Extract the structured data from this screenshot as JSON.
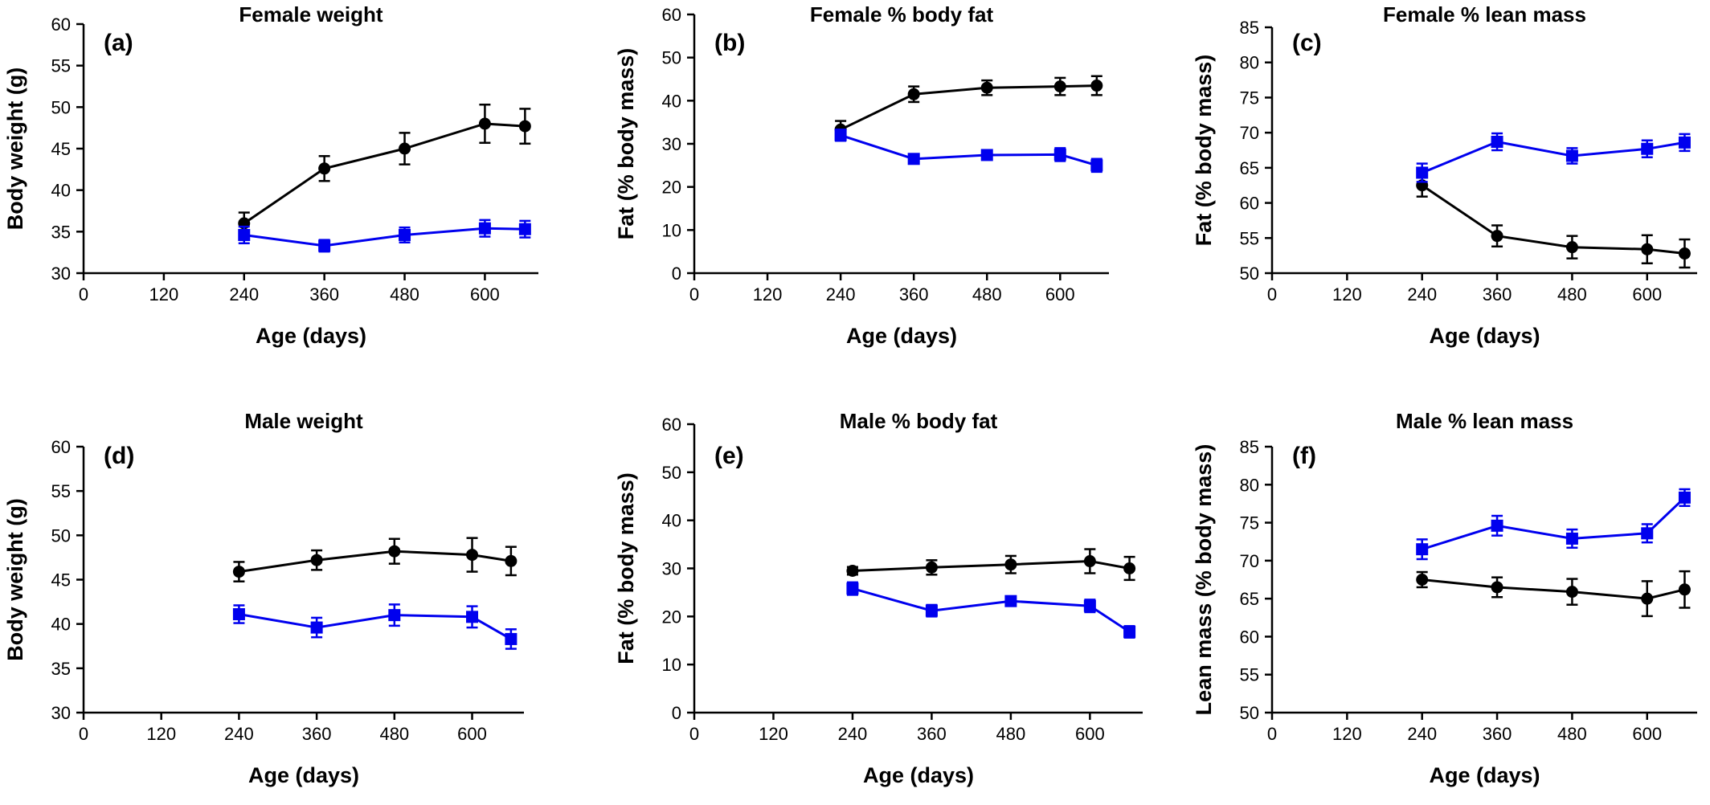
{
  "colors": {
    "black_series": "#000000",
    "blue_series": "#0000ee"
  },
  "chart_data": [
    {
      "panel": "(a)",
      "type": "line",
      "title": "Female weight",
      "xlabel": "Age (days)",
      "ylabel": "Body weight (g)",
      "xlim": [
        0,
        680
      ],
      "xticks": [
        0,
        120,
        240,
        360,
        480,
        600
      ],
      "ylim": [
        30,
        60
      ],
      "yticks": [
        30,
        35,
        40,
        45,
        50,
        55,
        60
      ],
      "series": [
        {
          "color": "black",
          "marker": "circle",
          "x": [
            240,
            360,
            480,
            600,
            660
          ],
          "y": [
            36.0,
            42.6,
            45.0,
            48.0,
            47.7
          ],
          "err": [
            1.3,
            1.5,
            1.9,
            2.3,
            2.1
          ]
        },
        {
          "color": "blue",
          "marker": "square",
          "x": [
            240,
            360,
            480,
            600,
            660
          ],
          "y": [
            34.6,
            33.3,
            34.6,
            35.4,
            35.3
          ],
          "err": [
            1.0,
            0.7,
            0.9,
            1.0,
            1.0
          ]
        }
      ]
    },
    {
      "panel": "(b)",
      "type": "line",
      "title": "Female % body fat",
      "xlabel": "Age (days)",
      "ylabel": "Fat (% body mass)",
      "xlim": [
        0,
        680
      ],
      "xticks": [
        0,
        120,
        240,
        360,
        480,
        600
      ],
      "ylim": [
        0,
        60
      ],
      "yticks": [
        0,
        10,
        20,
        30,
        40,
        50,
        60
      ],
      "series": [
        {
          "color": "black",
          "marker": "circle",
          "x": [
            240,
            360,
            480,
            600,
            660
          ],
          "y": [
            33.3,
            41.5,
            43.0,
            43.3,
            43.5
          ],
          "err": [
            2.0,
            1.8,
            1.7,
            2.0,
            2.2
          ]
        },
        {
          "color": "blue",
          "marker": "square",
          "x": [
            240,
            360,
            480,
            600,
            660
          ],
          "y": [
            32.0,
            26.5,
            27.4,
            27.5,
            25.0
          ],
          "err": [
            1.3,
            0.8,
            1.0,
            1.5,
            1.5
          ]
        }
      ]
    },
    {
      "panel": "(c)",
      "type": "line",
      "title": "Female % lean mass",
      "xlabel": "Age (days)",
      "ylabel": "Fat (% body mass)",
      "xlim": [
        0,
        680
      ],
      "xticks": [
        0,
        120,
        240,
        360,
        480,
        600
      ],
      "ylim": [
        50,
        85
      ],
      "yticks": [
        50,
        55,
        60,
        65,
        70,
        75,
        80,
        85
      ],
      "series": [
        {
          "color": "black",
          "marker": "circle",
          "x": [
            240,
            360,
            480,
            600,
            660
          ],
          "y": [
            62.5,
            55.3,
            53.7,
            53.4,
            52.8
          ],
          "err": [
            1.6,
            1.5,
            1.6,
            2.0,
            2.0
          ]
        },
        {
          "color": "blue",
          "marker": "square",
          "x": [
            240,
            360,
            480,
            600,
            660
          ],
          "y": [
            64.3,
            68.7,
            66.7,
            67.7,
            68.6
          ],
          "err": [
            1.3,
            1.2,
            1.1,
            1.2,
            1.2
          ]
        }
      ]
    },
    {
      "panel": "(d)",
      "type": "line",
      "title": "Male weight",
      "xlabel": "Age (days)",
      "ylabel": "Body weight (g)",
      "xlim": [
        0,
        680
      ],
      "xticks": [
        0,
        120,
        240,
        360,
        480,
        600
      ],
      "ylim": [
        30,
        60
      ],
      "yticks": [
        30,
        35,
        40,
        45,
        50,
        55,
        60
      ],
      "series": [
        {
          "color": "black",
          "marker": "circle",
          "x": [
            240,
            360,
            480,
            600,
            660
          ],
          "y": [
            45.9,
            47.2,
            48.2,
            47.8,
            47.1
          ],
          "err": [
            1.1,
            1.1,
            1.4,
            1.9,
            1.6
          ]
        },
        {
          "color": "blue",
          "marker": "square",
          "x": [
            240,
            360,
            480,
            600,
            660
          ],
          "y": [
            41.1,
            39.6,
            41.0,
            40.8,
            38.3
          ],
          "err": [
            1.0,
            1.1,
            1.2,
            1.2,
            1.1
          ]
        }
      ]
    },
    {
      "panel": "(e)",
      "type": "line",
      "title": "Male % body fat",
      "xlabel": "Age (days)",
      "ylabel": "Fat (% body mass)",
      "xlim": [
        0,
        680
      ],
      "xticks": [
        0,
        120,
        240,
        360,
        480,
        600
      ],
      "ylim": [
        0,
        60
      ],
      "yticks": [
        0,
        10,
        20,
        30,
        40,
        50,
        60
      ],
      "series": [
        {
          "color": "black",
          "marker": "circle",
          "x": [
            240,
            360,
            480,
            600,
            660
          ],
          "y": [
            29.5,
            30.2,
            30.8,
            31.5,
            30.0
          ],
          "err": [
            0.8,
            1.5,
            1.8,
            2.5,
            2.4
          ]
        },
        {
          "color": "blue",
          "marker": "square",
          "x": [
            240,
            360,
            480,
            600,
            660
          ],
          "y": [
            25.8,
            21.2,
            23.2,
            22.2,
            16.8
          ],
          "err": [
            1.3,
            1.2,
            1.0,
            1.3,
            1.2
          ]
        }
      ]
    },
    {
      "panel": "(f)",
      "type": "line",
      "title": "Male % lean mass",
      "xlabel": "Age (days)",
      "ylabel": "Lean mass (% body mass)",
      "xlim": [
        0,
        680
      ],
      "xticks": [
        0,
        120,
        240,
        360,
        480,
        600
      ],
      "ylim": [
        50,
        85
      ],
      "yticks": [
        50,
        55,
        60,
        65,
        70,
        75,
        80,
        85
      ],
      "series": [
        {
          "color": "black",
          "marker": "circle",
          "x": [
            240,
            360,
            480,
            600,
            660
          ],
          "y": [
            67.5,
            66.5,
            65.9,
            65.0,
            66.2
          ],
          "err": [
            1.0,
            1.3,
            1.7,
            2.3,
            2.4
          ]
        },
        {
          "color": "blue",
          "marker": "square",
          "x": [
            240,
            360,
            480,
            600,
            660
          ],
          "y": [
            71.5,
            74.6,
            72.9,
            73.6,
            78.3
          ],
          "err": [
            1.3,
            1.3,
            1.2,
            1.2,
            1.1
          ]
        }
      ]
    }
  ]
}
